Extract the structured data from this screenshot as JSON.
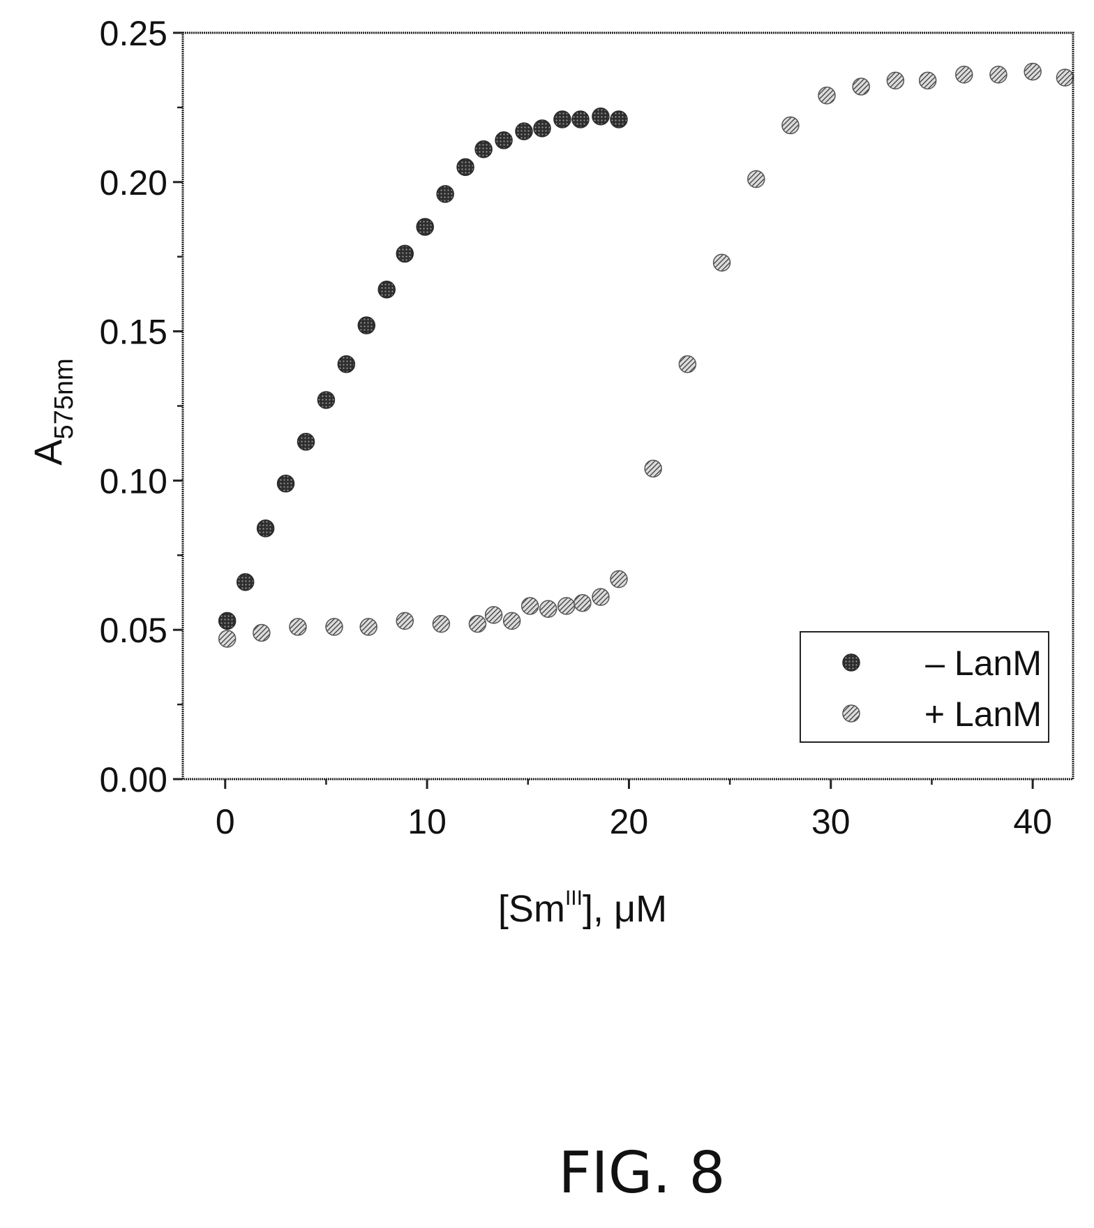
{
  "figure_label": "FIG. 8",
  "chart_data": {
    "type": "scatter",
    "xlabel": {
      "base": "[Sm",
      "sup": "III",
      "suffix": "], μM"
    },
    "ylabel": {
      "base": "A",
      "sub": "575nm"
    },
    "xlim": [
      -2.1,
      42
    ],
    "ylim": [
      0,
      0.25
    ],
    "xticks": [
      0,
      10,
      20,
      30,
      40
    ],
    "xtick_labels": [
      "0",
      "10",
      "20",
      "30",
      "40"
    ],
    "yticks": [
      0,
      0.05,
      0.1,
      0.15,
      0.2,
      0.25
    ],
    "ytick_labels": [
      "0.00",
      "0.05",
      "0.10",
      "0.15",
      "0.20",
      "0.25"
    ],
    "legend_position": "bottom-right",
    "series": [
      {
        "name": "– LanM",
        "marker": "filled-circle",
        "color": "#555555",
        "x": [
          0.1,
          1.0,
          2.0,
          3.0,
          4.0,
          5.0,
          6.0,
          7.0,
          8.0,
          8.9,
          9.9,
          10.9,
          11.9,
          12.8,
          13.8,
          14.8,
          15.7,
          16.7,
          17.6,
          18.6,
          19.5
        ],
        "y": [
          0.053,
          0.066,
          0.084,
          0.099,
          0.113,
          0.127,
          0.139,
          0.152,
          0.164,
          0.176,
          0.185,
          0.196,
          0.205,
          0.211,
          0.214,
          0.217,
          0.218,
          0.221,
          0.221,
          0.222,
          0.221
        ]
      },
      {
        "name": "+ LanM",
        "marker": "hatched-circle",
        "color": "#666666",
        "x": [
          0.1,
          1.8,
          3.6,
          5.4,
          7.1,
          8.9,
          10.7,
          12.5,
          13.3,
          14.2,
          15.1,
          16.0,
          16.9,
          17.7,
          18.6,
          19.5,
          21.2,
          22.9,
          24.6,
          26.3,
          28.0,
          29.8,
          31.5,
          33.2,
          34.8,
          36.6,
          38.3,
          40.0,
          41.6
        ],
        "y": [
          0.047,
          0.049,
          0.051,
          0.051,
          0.051,
          0.053,
          0.052,
          0.052,
          0.055,
          0.053,
          0.058,
          0.057,
          0.058,
          0.059,
          0.061,
          0.067,
          0.104,
          0.139,
          0.173,
          0.201,
          0.219,
          0.229,
          0.232,
          0.234,
          0.234,
          0.236,
          0.236,
          0.237,
          0.235
        ]
      }
    ]
  }
}
